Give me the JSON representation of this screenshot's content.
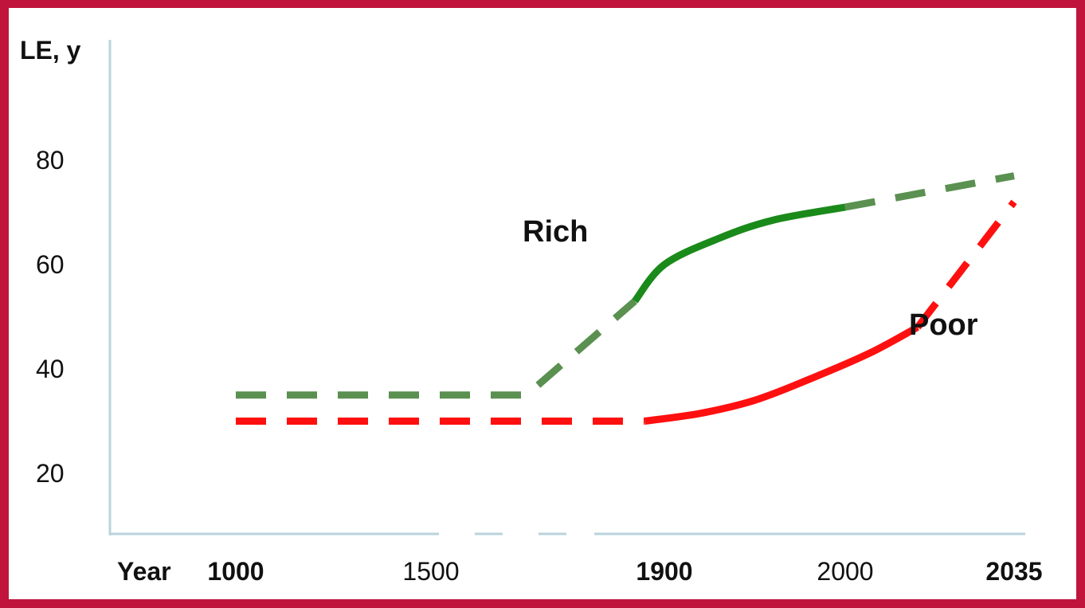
{
  "chart_data": {
    "type": "line",
    "ylabel": "LE, y",
    "xlabel": "Year",
    "ylim": [
      0,
      90
    ],
    "y_ticks": [
      "20",
      "40",
      "60",
      "80"
    ],
    "x_ticks": [
      {
        "label": "1000",
        "bold": true
      },
      {
        "label": "1500",
        "bold": false
      },
      {
        "label": "1900",
        "bold": true
      },
      {
        "label": "2000",
        "bold": false
      },
      {
        "label": "2035",
        "bold": true
      }
    ],
    "axis_break": true,
    "grid": false,
    "series": [
      {
        "name": "Rich",
        "color": "#5a9050",
        "solid_color": "#1a8a1a",
        "segments": [
          {
            "style": "dashed",
            "points": [
              [
                1000,
                35
              ],
              [
                1760,
                35
              ],
              [
                1870,
                53
              ]
            ]
          },
          {
            "style": "solid",
            "points": [
              [
                1870,
                53
              ],
              [
                1900,
                60
              ],
              [
                1930,
                65
              ],
              [
                1960,
                68.5
              ],
              [
                2000,
                71
              ]
            ]
          },
          {
            "style": "dashed",
            "points": [
              [
                2000,
                71
              ],
              [
                2035,
                77
              ]
            ]
          }
        ]
      },
      {
        "name": "Poor",
        "color": "#ff1010",
        "solid_color": "#ff1010",
        "segments": [
          {
            "style": "dashed",
            "points": [
              [
                1000,
                30
              ],
              [
                1880,
                30
              ]
            ]
          },
          {
            "style": "solid",
            "points": [
              [
                1880,
                30
              ],
              [
                1920,
                31.5
              ],
              [
                1950,
                34
              ],
              [
                1980,
                38
              ],
              [
                2005,
                43
              ],
              [
                2015,
                48
              ]
            ]
          },
          {
            "style": "dashed",
            "points": [
              [
                2015,
                48
              ],
              [
                2035,
                72
              ]
            ]
          }
        ]
      }
    ]
  }
}
